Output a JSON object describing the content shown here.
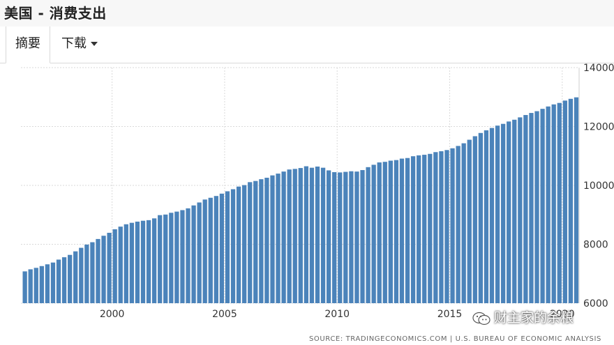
{
  "header": {
    "title": "美国 - 消费支出"
  },
  "tabs": [
    {
      "label": "摘要",
      "active": true
    },
    {
      "label": "下载",
      "active": false
    }
  ],
  "source_note": "SOURCE: TRADINGECONOMICS.COM  |  U.S. BUREAU OF ECONOMIC ANALYSIS",
  "watermark": {
    "text": "财主家的余粮",
    "icon": "wechat-icon"
  },
  "colors": {
    "bar": "#4b83ba",
    "grid": "#d9d9d9"
  },
  "chart_data": {
    "type": "bar",
    "title": "",
    "xlabel": "",
    "ylabel": "",
    "ylim": [
      6000,
      14000
    ],
    "yticks": [
      6000,
      8000,
      10000,
      12000,
      14000
    ],
    "y_axis_position": "right",
    "x_tick_labels": [
      "2000",
      "2005",
      "2010",
      "2015",
      "2020"
    ],
    "x_tick_values": [
      2000.0,
      2005.0,
      2010.0,
      2015.0,
      2020.0
    ],
    "grid": true,
    "x": [
      1996.0,
      1996.25,
      1996.5,
      1996.75,
      1997.0,
      1997.25,
      1997.5,
      1997.75,
      1998.0,
      1998.25,
      1998.5,
      1998.75,
      1999.0,
      1999.25,
      1999.5,
      1999.75,
      2000.0,
      2000.25,
      2000.5,
      2000.75,
      2001.0,
      2001.25,
      2001.5,
      2001.75,
      2002.0,
      2002.25,
      2002.5,
      2002.75,
      2003.0,
      2003.25,
      2003.5,
      2003.75,
      2004.0,
      2004.25,
      2004.5,
      2004.75,
      2005.0,
      2005.25,
      2005.5,
      2005.75,
      2006.0,
      2006.25,
      2006.5,
      2006.75,
      2007.0,
      2007.25,
      2007.5,
      2007.75,
      2008.0,
      2008.25,
      2008.5,
      2008.75,
      2009.0,
      2009.25,
      2009.5,
      2009.75,
      2010.0,
      2010.25,
      2010.5,
      2010.75,
      2011.0,
      2011.25,
      2011.5,
      2011.75,
      2012.0,
      2012.25,
      2012.5,
      2012.75,
      2013.0,
      2013.25,
      2013.5,
      2013.75,
      2014.0,
      2014.25,
      2014.5,
      2014.75,
      2015.0,
      2015.25,
      2015.5,
      2015.75,
      2016.0,
      2016.25,
      2016.5,
      2016.75,
      2017.0,
      2017.25,
      2017.5,
      2017.75,
      2018.0,
      2018.25,
      2018.5,
      2018.75,
      2019.0,
      2019.25,
      2019.5,
      2019.75,
      2020.0,
      2020.25,
      2020.5
    ],
    "values": [
      7080,
      7150,
      7200,
      7260,
      7320,
      7380,
      7480,
      7560,
      7640,
      7760,
      7880,
      7990,
      8070,
      8180,
      8290,
      8390,
      8510,
      8600,
      8680,
      8730,
      8770,
      8800,
      8820,
      8880,
      8990,
      9010,
      9070,
      9110,
      9160,
      9220,
      9320,
      9420,
      9520,
      9580,
      9640,
      9720,
      9800,
      9870,
      9960,
      10010,
      10110,
      10150,
      10210,
      10260,
      10340,
      10400,
      10470,
      10540,
      10560,
      10590,
      10650,
      10600,
      10640,
      10600,
      10510,
      10450,
      10440,
      10460,
      10480,
      10470,
      10520,
      10620,
      10700,
      10780,
      10800,
      10840,
      10860,
      10910,
      10930,
      10990,
      11020,
      11040,
      11070,
      11130,
      11160,
      11200,
      11260,
      11340,
      11430,
      11550,
      11670,
      11780,
      11870,
      11950,
      12030,
      12090,
      12170,
      12230,
      12310,
      12390,
      12460,
      12520,
      12600,
      12680,
      12750,
      12800,
      12880,
      12940,
      12990
    ]
  }
}
